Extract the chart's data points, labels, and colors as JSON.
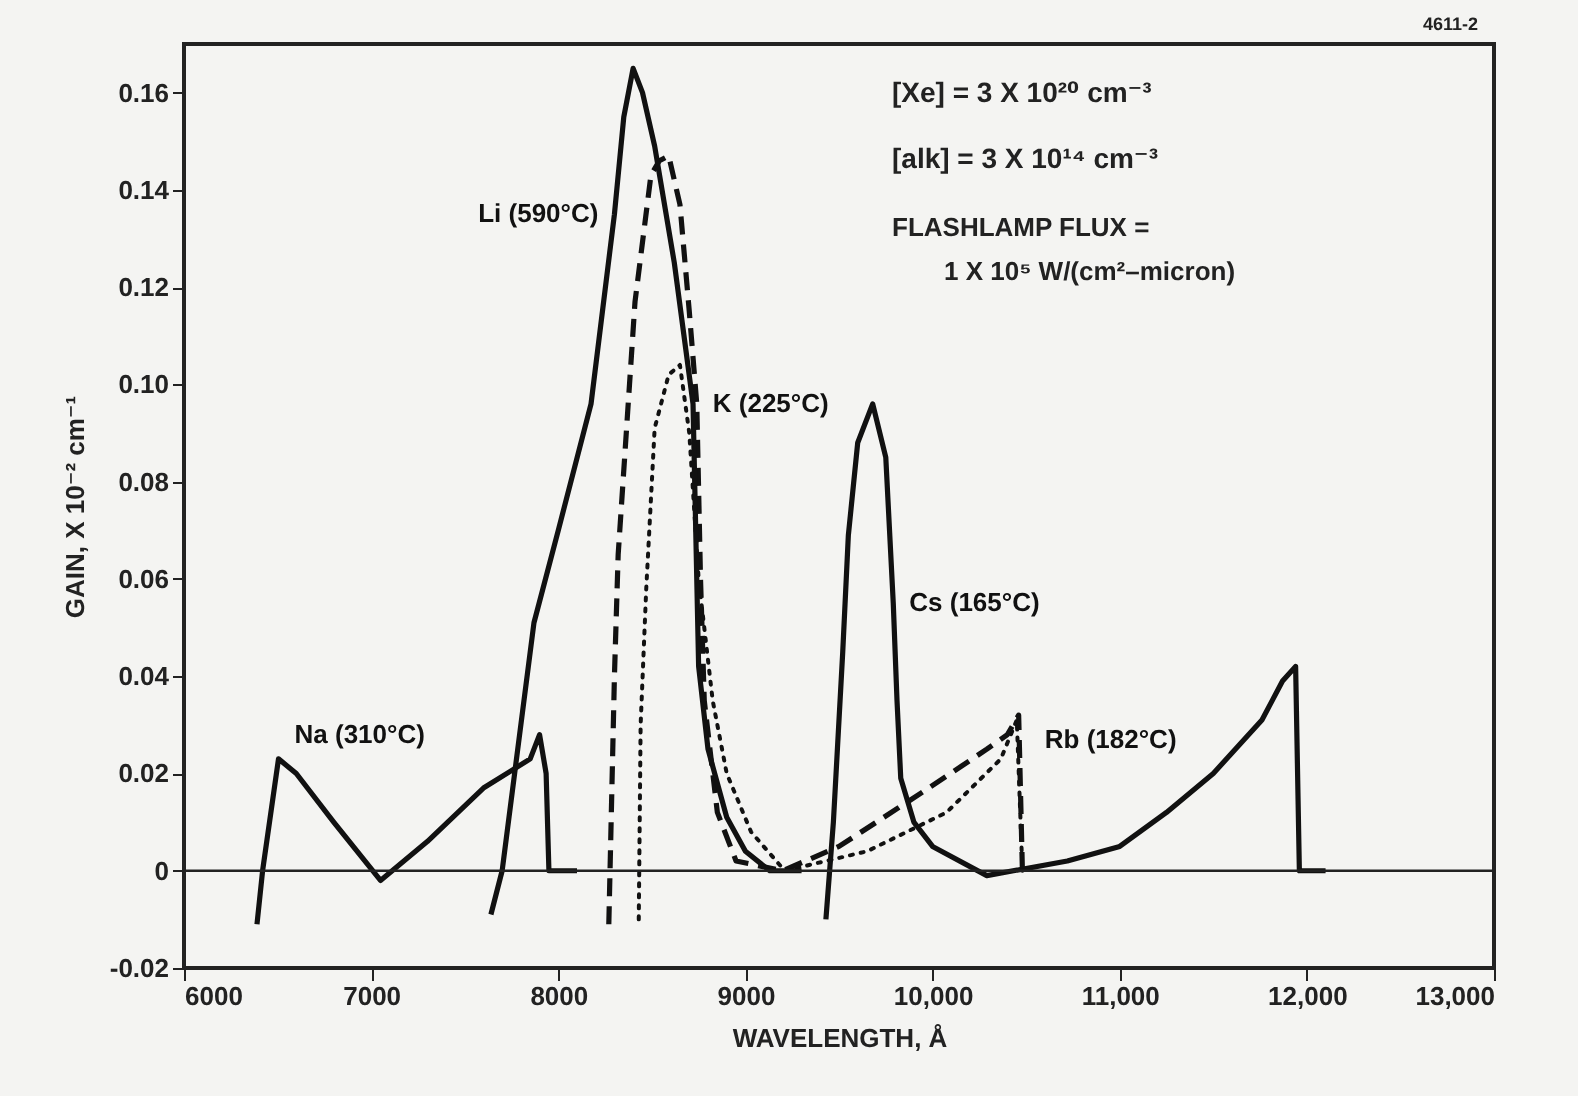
{
  "chart_data": {
    "type": "line",
    "xlabel": "WAVELENGTH, Å",
    "ylabel": "GAIN, X 10⁻² cm⁻¹",
    "xlim": [
      6000,
      13000
    ],
    "ylim": [
      -0.02,
      0.17
    ],
    "xticks": [
      6000,
      7000,
      8000,
      9000,
      {
        "value": 10000,
        "label": "10,000"
      },
      {
        "value": 11000,
        "label": "11,000"
      },
      {
        "value": 12000,
        "label": "12,000"
      },
      {
        "value": 13000,
        "label": "13,000"
      }
    ],
    "yticks": [
      -0.02,
      0,
      0.02,
      0.04,
      0.06,
      0.08,
      {
        "value": 0.1,
        "label": "0.10"
      },
      0.12,
      0.14,
      0.16
    ],
    "grid": false,
    "legend": false,
    "marker": "none",
    "ref_lines": [
      {
        "axis": "y",
        "value": 0,
        "color": "#222222",
        "line_style": "solid"
      }
    ],
    "annotations": [
      "[Xe] = 3 X 10²⁰ cm⁻³",
      "[alk] = 3 X 10¹⁴ cm⁻³",
      "FLASHLAMP FLUX =",
      "1 X 10⁵ W/(cm²–micron)",
      "4611-2"
    ],
    "series": [
      {
        "name": "Na (310°C)",
        "color": "#111111",
        "line_style": "solid",
        "x": [
          6390,
          6420,
          6505,
          6600,
          6800,
          7050,
          7300,
          7600,
          7850,
          7900,
          7935,
          7950,
          8100
        ],
        "values": [
          -0.011,
          0,
          0.023,
          0.02,
          0.01,
          -0.002,
          0.006,
          0.017,
          0.023,
          0.028,
          0.02,
          0,
          0
        ]
      },
      {
        "name": "Li (590°C)",
        "color": "#111111",
        "line_style": "solid",
        "x": [
          7640,
          7700,
          7870,
          8000,
          8175,
          8300,
          8350,
          8400,
          8450,
          8515,
          8620,
          8720,
          8750,
          8800,
          8900,
          9000,
          9130,
          9300
        ],
        "values": [
          -0.009,
          0,
          0.051,
          0.07,
          0.096,
          0.135,
          0.155,
          0.165,
          0.16,
          0.149,
          0.125,
          0.096,
          0.042,
          0.025,
          0.011,
          0.004,
          0,
          0
        ]
      },
      {
        "name": "K (225°C)",
        "color": "#111111",
        "line_style": "dashed",
        "x": [
          8270,
          8300,
          8320,
          8410,
          8495,
          8540,
          8590,
          8650,
          8700,
          8740,
          8760,
          8780,
          8850,
          8950,
          9200,
          9500,
          9940,
          10290,
          10400,
          10460,
          10480
        ],
        "values": [
          -0.011,
          0.04,
          0.065,
          0.117,
          0.143,
          0.146,
          0.147,
          0.137,
          0.115,
          0.096,
          0.06,
          0.035,
          0.012,
          0.002,
          0,
          0.005,
          0.016,
          0.025,
          0.028,
          0.032,
          0
        ]
      },
      {
        "name": "Rb (182°C)",
        "color": "#111111",
        "line_style": "dotted",
        "x": [
          8430,
          8440,
          8470,
          8515,
          8590,
          8650,
          8700,
          8750,
          8825,
          8900,
          9030,
          9210,
          9650,
          10075,
          10365,
          10450,
          10480
        ],
        "values": [
          -0.01,
          0.03,
          0.058,
          0.091,
          0.102,
          0.104,
          0.09,
          0.06,
          0.035,
          0.02,
          0.008,
          0,
          0.004,
          0.012,
          0.023,
          0.031,
          0
        ]
      },
      {
        "name": "Cs (165°C)",
        "color": "#111111",
        "line_style": "solid",
        "x": [
          9430,
          9470,
          9520,
          9550,
          9600,
          9680,
          9750,
          9790,
          9810,
          9830,
          9900,
          10000,
          10290,
          10720,
          11000,
          11250,
          11500,
          11760,
          11870,
          11940,
          11960,
          12100
        ],
        "values": [
          -0.01,
          0.01,
          0.045,
          0.069,
          0.088,
          0.096,
          0.085,
          0.055,
          0.035,
          0.019,
          0.01,
          0.005,
          -0.001,
          0.002,
          0.005,
          0.012,
          0.02,
          0.031,
          0.039,
          0.042,
          0,
          0
        ]
      }
    ]
  }
}
